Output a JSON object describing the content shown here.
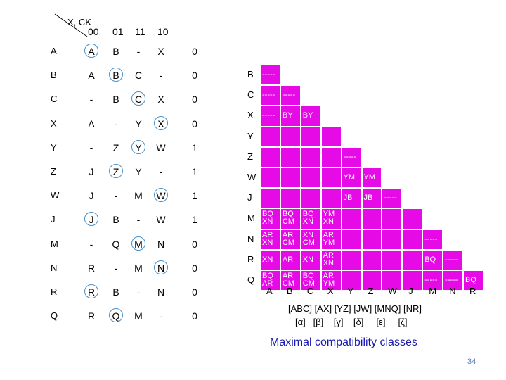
{
  "flow_table": {
    "corner_label": "X, CK",
    "columns": [
      "00",
      "01",
      "11",
      "10"
    ],
    "rows": [
      {
        "state": "A",
        "next": [
          "A",
          "B",
          "-",
          "X"
        ],
        "out": "0"
      },
      {
        "state": "B",
        "next": [
          "A",
          "B",
          "C",
          "-"
        ],
        "out": "0"
      },
      {
        "state": "C",
        "next": [
          "-",
          "B",
          "C",
          "X"
        ],
        "out": "0"
      },
      {
        "state": "X",
        "next": [
          "A",
          "-",
          "Y",
          "X"
        ],
        "out": "0"
      },
      {
        "state": "Y",
        "next": [
          "-",
          "Z",
          "Y",
          "W"
        ],
        "out": "1"
      },
      {
        "state": "Z",
        "next": [
          "J",
          "Z",
          "Y",
          "-"
        ],
        "out": "1"
      },
      {
        "state": "W",
        "next": [
          "J",
          "-",
          "M",
          "W"
        ],
        "out": "1"
      },
      {
        "state": "J",
        "next": [
          "J",
          "B",
          "-",
          "W"
        ],
        "out": "1"
      },
      {
        "state": "M",
        "next": [
          "-",
          "Q",
          "M",
          "N"
        ],
        "out": "0"
      },
      {
        "state": "N",
        "next": [
          "R",
          "-",
          "M",
          "N"
        ],
        "out": "0"
      },
      {
        "state": "R",
        "next": [
          "R",
          "B",
          "-",
          "N"
        ],
        "out": "0"
      },
      {
        "state": "Q",
        "next": [
          "R",
          "Q",
          "M",
          "-"
        ],
        "out": "0"
      }
    ]
  },
  "implication_table": {
    "row_labels": [
      "B",
      "C",
      "X",
      "Y",
      "Z",
      "W",
      "J",
      "M",
      "N",
      "R",
      "Q"
    ],
    "col_labels": [
      "A",
      "B",
      "C",
      "X",
      "Y",
      "Z",
      "W",
      "J",
      "M",
      "N",
      "R"
    ],
    "cells": [
      {
        "r": 0,
        "c": 0,
        "text": "-----"
      },
      {
        "r": 1,
        "c": 0,
        "text": "-----"
      },
      {
        "r": 1,
        "c": 1,
        "text": "-----"
      },
      {
        "r": 2,
        "c": 0,
        "text": "-----"
      },
      {
        "r": 2,
        "c": 1,
        "text": "BY"
      },
      {
        "r": 2,
        "c": 2,
        "text": "BY"
      },
      {
        "r": 4,
        "c": 4,
        "text": "-----"
      },
      {
        "r": 5,
        "c": 4,
        "text": "YM"
      },
      {
        "r": 5,
        "c": 5,
        "text": "YM"
      },
      {
        "r": 6,
        "c": 4,
        "text": "JB"
      },
      {
        "r": 6,
        "c": 5,
        "text": "JB"
      },
      {
        "r": 6,
        "c": 6,
        "text": "-----"
      },
      {
        "r": 7,
        "c": 0,
        "text": "BQ\nXN"
      },
      {
        "r": 7,
        "c": 1,
        "text": "BQ\nCM"
      },
      {
        "r": 7,
        "c": 2,
        "text": "BQ\nXN"
      },
      {
        "r": 7,
        "c": 3,
        "text": "YM\nXN"
      },
      {
        "r": 8,
        "c": 0,
        "text": "AR\nXN"
      },
      {
        "r": 8,
        "c": 1,
        "text": "AR\nCM"
      },
      {
        "r": 8,
        "c": 2,
        "text": "XN\nCM"
      },
      {
        "r": 8,
        "c": 3,
        "text": "AR\nYM"
      },
      {
        "r": 8,
        "c": 8,
        "text": "-----"
      },
      {
        "r": 9,
        "c": 0,
        "text": "XN"
      },
      {
        "r": 9,
        "c": 1,
        "text": "AR"
      },
      {
        "r": 9,
        "c": 2,
        "text": "XN"
      },
      {
        "r": 9,
        "c": 3,
        "text": "AR\nXN"
      },
      {
        "r": 9,
        "c": 8,
        "text": "BQ"
      },
      {
        "r": 9,
        "c": 9,
        "text": "-----"
      },
      {
        "r": 10,
        "c": 0,
        "text": "BQ\nAR"
      },
      {
        "r": 10,
        "c": 1,
        "text": "AR\nCM"
      },
      {
        "r": 10,
        "c": 2,
        "text": "BQ\nCM"
      },
      {
        "r": 10,
        "c": 3,
        "text": "AR\nYM"
      },
      {
        "r": 10,
        "c": 8,
        "text": "-----"
      },
      {
        "r": 10,
        "c": 9,
        "text": "-----"
      },
      {
        "r": 10,
        "c": 10,
        "text": "BQ"
      }
    ]
  },
  "classes_line1": "[ABC] [AX] [YZ] [JW] [MNQ] [NR]",
  "classes_line2": "[α]   [β]    [γ]    [δ]     [ε]     [ζ]",
  "caption": "Maximal compatibility classes",
  "page_number": "34",
  "colors": {
    "cell_fill": "#e60ae6",
    "circle": "#4a90c8",
    "caption": "#1a1ab0",
    "page_number": "#5b7fb6"
  }
}
